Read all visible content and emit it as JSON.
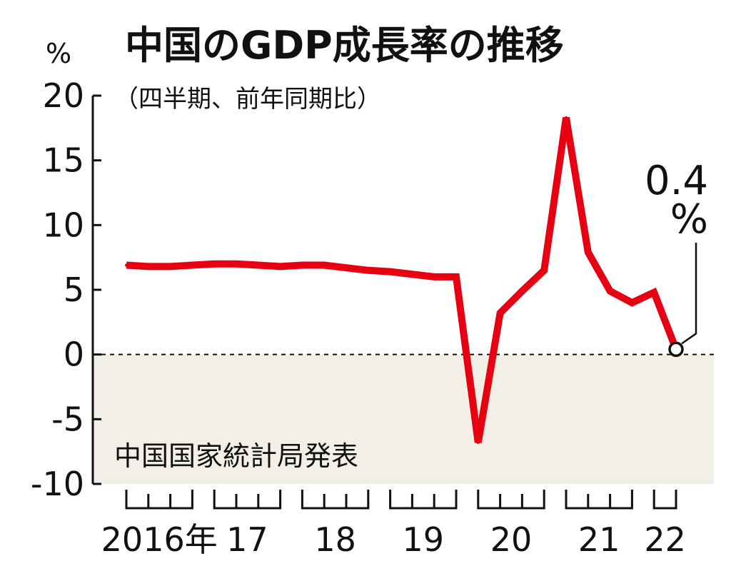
{
  "chart_data": {
    "type": "line",
    "title": "中国のGDP成長率の推移",
    "subtitle": "（四半期、前年同期比）",
    "ylabel": "%",
    "ylim": [
      -10,
      20
    ],
    "yticks": [
      "20",
      "15",
      "10",
      "5",
      "0",
      "-5",
      "-10"
    ],
    "year_labels": [
      "2016年",
      "17",
      "18",
      "19",
      "20",
      "21",
      "22"
    ],
    "series": [
      {
        "values": [
          6.9,
          6.8,
          6.8,
          6.9,
          7.0,
          7.0,
          6.9,
          6.8,
          6.9,
          6.9,
          6.7,
          6.5,
          6.4,
          6.2,
          6.0,
          6.0,
          -6.8,
          3.2,
          4.9,
          6.5,
          18.3,
          7.9,
          4.9,
          4.0,
          4.8,
          0.4
        ],
        "color": "#e60012"
      }
    ],
    "negative_region_color": "#f2f0e6",
    "annotation": {
      "value": "0.4",
      "unit": "%"
    },
    "source": "中国国家統計局発表",
    "zero_line": "dashed"
  }
}
